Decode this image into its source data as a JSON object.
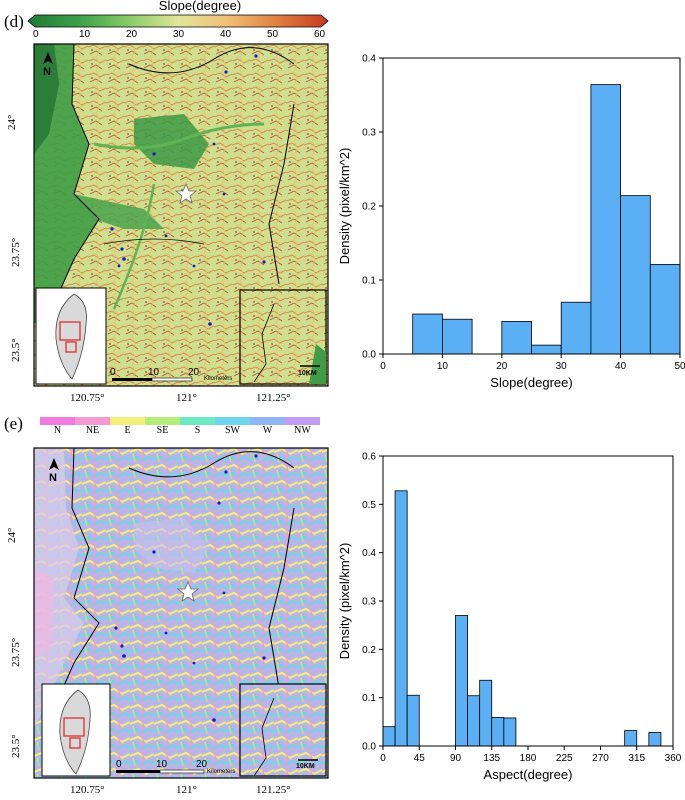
{
  "panel_d": {
    "label": "(d)",
    "colorbar": {
      "title": "Slope(degree)",
      "ticks": [
        "0",
        "10",
        "20",
        "30",
        "40",
        "50",
        "60"
      ],
      "gradient": [
        "#1f7a34",
        "#3fa34a",
        "#8fce6b",
        "#e0e69a",
        "#f2c07a",
        "#e0803f",
        "#c63a22"
      ]
    },
    "map": {
      "north": "N",
      "lat_labels": [
        "24°",
        "23.75°",
        "23.5°"
      ],
      "lon_labels": [
        "120.75°",
        "121°",
        "121.25°"
      ],
      "scale_labels": [
        "0",
        "10",
        "20"
      ],
      "scale_unit": "Kilometers",
      "inset_scale": "10KM"
    }
  },
  "panel_e": {
    "label": "(e)",
    "legend": [
      {
        "label": "N",
        "color": "#f07ae0"
      },
      {
        "label": "NE",
        "color": "#f59ad0"
      },
      {
        "label": "E",
        "color": "#f2ef7a"
      },
      {
        "label": "SE",
        "color": "#b5ec7a"
      },
      {
        "label": "S",
        "color": "#6ee9c6"
      },
      {
        "label": "SW",
        "color": "#6ed5ec"
      },
      {
        "label": "W",
        "color": "#8fb5f5"
      },
      {
        "label": "NW",
        "color": "#c39af5"
      }
    ],
    "map": {
      "north": "N",
      "lat_labels": [
        "24°",
        "23.75°",
        "23.5°"
      ],
      "lon_labels": [
        "120.75°",
        "121°",
        "121.25°"
      ],
      "scale_labels": [
        "0",
        "10",
        "20"
      ],
      "scale_unit": "Kilometers",
      "inset_scale": "10KM"
    }
  },
  "chart_data": [
    {
      "type": "bar",
      "x": [
        0,
        5,
        10,
        15,
        20,
        25,
        30,
        35,
        40,
        45
      ],
      "bin_width": 5,
      "values": [
        0.0,
        0.054,
        0.047,
        0.0,
        0.044,
        0.012,
        0.07,
        0.364,
        0.214,
        0.121
      ],
      "xlabel": "Slope(degree)",
      "ylabel": "Density (pixel/km^2)",
      "xlim": [
        0,
        50
      ],
      "ylim": [
        0,
        0.4
      ],
      "xticks": [
        0,
        10,
        20,
        30,
        40,
        50
      ],
      "yticks": [
        0.0,
        0.1,
        0.2,
        0.3,
        0.4
      ],
      "color": "#5aaff5"
    },
    {
      "type": "bar",
      "x": [
        0,
        15,
        30,
        45,
        60,
        75,
        90,
        105,
        120,
        135,
        150,
        165,
        180,
        195,
        210,
        225,
        240,
        255,
        270,
        285,
        300,
        315,
        330,
        345
      ],
      "bin_width": 15,
      "values": [
        0.04,
        0.528,
        0.105,
        0,
        0,
        0,
        0.27,
        0.104,
        0.136,
        0.059,
        0.058,
        0,
        0,
        0,
        0,
        0,
        0,
        0,
        0,
        0,
        0.032,
        0,
        0.028,
        0
      ],
      "xlabel": "Aspect(degree)",
      "ylabel": "Density (pixel/km^2)",
      "xlim": [
        0,
        360
      ],
      "ylim": [
        0,
        0.6
      ],
      "xticks": [
        0,
        45,
        90,
        135,
        180,
        225,
        270,
        315,
        360
      ],
      "yticks": [
        0.0,
        0.1,
        0.2,
        0.3,
        0.4,
        0.5,
        0.6
      ],
      "color": "#5aaff5"
    }
  ]
}
